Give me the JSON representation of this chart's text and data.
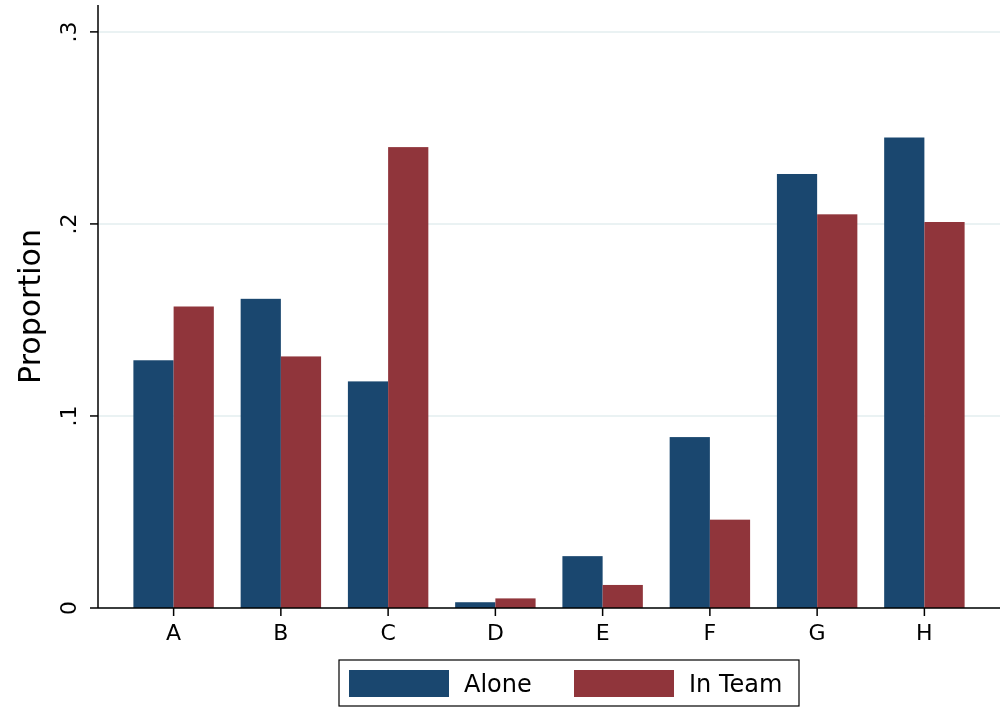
{
  "chart_data": {
    "type": "bar",
    "ylabel": "Proportion",
    "categories": [
      "A",
      "B",
      "C",
      "D",
      "E",
      "F",
      "G",
      "H"
    ],
    "series": [
      {
        "name": "Alone",
        "color": "#1a476f",
        "values": [
          0.129,
          0.161,
          0.118,
          0.003,
          0.027,
          0.089,
          0.226,
          0.245
        ]
      },
      {
        "name": "In Team",
        "color": "#90353b",
        "values": [
          0.157,
          0.131,
          0.24,
          0.005,
          0.012,
          0.046,
          0.205,
          0.201
        ]
      }
    ],
    "ylim": [
      0,
      0.314
    ],
    "yticks": [
      {
        "value": 0,
        "label": "0"
      },
      {
        "value": 0.1,
        "label": ".1"
      },
      {
        "value": 0.2,
        "label": ".2"
      },
      {
        "value": 0.3,
        "label": ".3"
      }
    ],
    "grid": "y",
    "legend": "bottom"
  }
}
